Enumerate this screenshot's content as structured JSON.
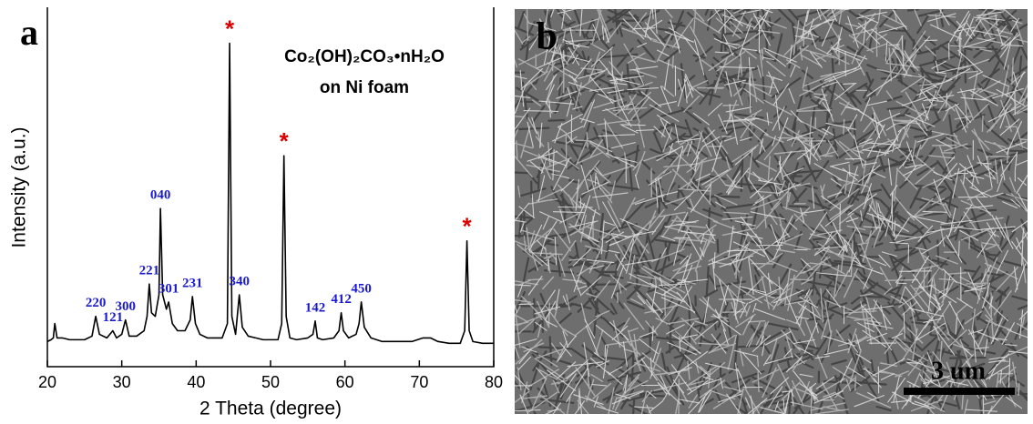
{
  "chart_data": {
    "type": "line",
    "panel_label": "a",
    "annotation": [
      "Co₂(OH)₂CO₃•nH₂O",
      "on Ni foam"
    ],
    "x_label": "2 Theta (degree)",
    "y_label": "Intensity (a.u.)",
    "xlim": [
      20,
      80
    ],
    "xticks": [
      20,
      30,
      40,
      50,
      60,
      70,
      80
    ],
    "ylim": [
      0,
      100
    ],
    "series": [
      {
        "color": "#000000",
        "x": [
          20,
          20.5,
          20.8,
          21,
          21.3,
          22,
          23,
          24,
          25,
          26,
          26.5,
          27,
          28,
          28.8,
          29.3,
          30,
          30.5,
          31,
          32,
          33,
          33.4,
          33.7,
          34,
          34.5,
          35,
          35.2,
          35.5,
          36,
          36.3,
          36.8,
          37.5,
          38.5,
          39.2,
          39.5,
          39.9,
          40.5,
          41.5,
          42.5,
          43.5,
          44.2,
          44.5,
          44.8,
          45.3,
          45.8,
          46.2,
          47,
          48,
          49,
          50,
          51,
          51.5,
          51.8,
          52.1,
          52.6,
          53.5,
          55,
          55.7,
          56,
          56.3,
          57,
          58.5,
          59.2,
          59.5,
          59.8,
          60.5,
          61.5,
          61.9,
          62.2,
          62.6,
          63.5,
          65,
          67,
          69,
          70.5,
          71.5,
          72.5,
          74,
          75.5,
          76.1,
          76.4,
          76.7,
          77.2,
          78.5,
          80
        ],
        "values": [
          7,
          7.5,
          8,
          12,
          8,
          8,
          7.5,
          7.5,
          7.5,
          8.5,
          14,
          9,
          8,
          10,
          8,
          9,
          13,
          8.5,
          8.5,
          10,
          14,
          23,
          15,
          14,
          20,
          44,
          20,
          16,
          18,
          12,
          10,
          10,
          13,
          19.5,
          12,
          9,
          8,
          8,
          8,
          12,
          90,
          14,
          9,
          20,
          11,
          8.5,
          8,
          7.5,
          7.5,
          7.5,
          12,
          58.7,
          14,
          8,
          7.5,
          8,
          9,
          12.7,
          8,
          7.5,
          8,
          10,
          15,
          10,
          8,
          9,
          12,
          18,
          11,
          8,
          7,
          7,
          7,
          8,
          8,
          7,
          6.5,
          6.5,
          10,
          35,
          10,
          7,
          6.5,
          6.5
        ]
      }
    ],
    "peak_labels": [
      {
        "label": "220",
        "x": 26.5
      },
      {
        "label": "121",
        "x": 28.8
      },
      {
        "label": "300",
        "x": 30.5
      },
      {
        "label": "221",
        "x": 33.7
      },
      {
        "label": "040",
        "x": 35.2
      },
      {
        "label": "301",
        "x": 36.3
      },
      {
        "label": "231",
        "x": 39.5
      },
      {
        "label": "340",
        "x": 45.8
      },
      {
        "label": "142",
        "x": 56
      },
      {
        "label": "412",
        "x": 59.5
      },
      {
        "label": "450",
        "x": 62.2
      }
    ],
    "peak_label_color": "#1a1acc",
    "substrate_peaks": {
      "label": "*",
      "color": "#dd0000",
      "x": [
        44.5,
        51.8,
        76.4
      ]
    }
  },
  "image_panel": {
    "panel_label": "b",
    "scale_bar": "3 um"
  }
}
